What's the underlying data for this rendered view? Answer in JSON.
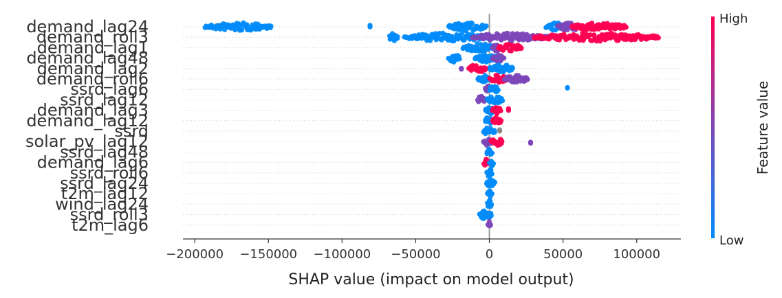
{
  "chart_data": {
    "type": "scatter",
    "subtype": "shap-beeswarm",
    "title": "",
    "xlabel": "SHAP value (impact on model output)",
    "ylabel": "",
    "xlim": [
      -208000,
      130000
    ],
    "x_ticks": [
      -200000,
      -150000,
      -100000,
      -50000,
      0,
      50000,
      100000
    ],
    "x_tick_labels": [
      "−200000",
      "−150000",
      "−100000",
      "−50000",
      "0",
      "50000",
      "100000"
    ],
    "grid": "dotted horizontal row lines",
    "colorbar": {
      "high_label": "High",
      "low_label": "Low",
      "title": "Feature value",
      "high_color": "#ff0052",
      "low_color": "#008bfb",
      "mid_color": "#7d47b8"
    },
    "features": [
      {
        "name": "demand_lag24",
        "clusters": [
          {
            "x0": -193000,
            "x1": -148000,
            "color": "low"
          },
          {
            "x0": -81000,
            "x1": -81000,
            "color": "low"
          },
          {
            "x0": -28000,
            "x1": -2000,
            "color": "low"
          },
          {
            "x0": 38000,
            "x1": 52000,
            "color": "low"
          },
          {
            "x0": 46000,
            "x1": 62000,
            "color": "mid"
          },
          {
            "x0": 56000,
            "x1": 93000,
            "color": "high"
          }
        ]
      },
      {
        "name": "demand_roll3",
        "clusters": [
          {
            "x0": -68000,
            "x1": -62000,
            "color": "low"
          },
          {
            "x0": -58000,
            "x1": 2000,
            "color": "low"
          },
          {
            "x0": -12000,
            "x1": 40000,
            "color": "mid"
          },
          {
            "x0": 30000,
            "x1": 115000,
            "color": "high"
          }
        ]
      },
      {
        "name": "demand_lag1",
        "clusters": [
          {
            "x0": -18000,
            "x1": 4000,
            "color": "low"
          },
          {
            "x0": 2000,
            "x1": 8000,
            "color": "mid"
          },
          {
            "x0": 6000,
            "x1": 22000,
            "color": "high"
          }
        ]
      },
      {
        "name": "demand_lag48",
        "clusters": [
          {
            "x0": -28000,
            "x1": -20000,
            "color": "low"
          },
          {
            "x0": -10000,
            "x1": 8000,
            "color": "low"
          },
          {
            "x0": 2000,
            "x1": 10000,
            "color": "mid"
          }
        ]
      },
      {
        "name": "demand_lag2",
        "clusters": [
          {
            "x0": -19000,
            "x1": -19000,
            "color": "mid"
          },
          {
            "x0": -14000,
            "x1": -2000,
            "color": "high"
          },
          {
            "x0": 0,
            "x1": 16000,
            "color": "low"
          }
        ]
      },
      {
        "name": "demand_roll6",
        "clusters": [
          {
            "x0": -8000,
            "x1": 0,
            "color": "low"
          },
          {
            "x0": 0,
            "x1": 12000,
            "color": "high"
          },
          {
            "x0": 10000,
            "x1": 26000,
            "color": "mid"
          }
        ]
      },
      {
        "name": "ssrd_lag6",
        "clusters": [
          {
            "x0": -3000,
            "x1": 2000,
            "color": "mid"
          },
          {
            "x0": 0,
            "x1": 6000,
            "color": "low"
          },
          {
            "x0": 53000,
            "x1": 53000,
            "color": "low"
          }
        ]
      },
      {
        "name": "ssrd_lag12",
        "clusters": [
          {
            "x0": -8000,
            "x1": -3000,
            "color": "mid"
          },
          {
            "x0": -2000,
            "x1": 9000,
            "color": "low"
          }
        ]
      },
      {
        "name": "demand_lag3",
        "clusters": [
          {
            "x0": -3000,
            "x1": 3000,
            "color": "low"
          },
          {
            "x0": 2000,
            "x1": 8000,
            "color": "high"
          },
          {
            "x0": 13000,
            "x1": 13000,
            "color": "high"
          }
        ]
      },
      {
        "name": "demand_lag12",
        "clusters": [
          {
            "x0": -3000,
            "x1": 3000,
            "color": "low"
          },
          {
            "x0": 2000,
            "x1": 8000,
            "color": "high"
          }
        ]
      },
      {
        "name": "ssrd",
        "clusters": [
          {
            "x0": -4000,
            "x1": 4000,
            "color": "low"
          },
          {
            "x0": 7000,
            "x1": 7000,
            "color": "gray"
          }
        ]
      },
      {
        "name": "solar_pv_lag12",
        "clusters": [
          {
            "x0": -4000,
            "x1": 2000,
            "color": "mid"
          },
          {
            "x0": 1000,
            "x1": 9000,
            "color": "high"
          },
          {
            "x0": 28000,
            "x1": 28000,
            "color": "mid"
          }
        ]
      },
      {
        "name": "ssrd_lag48",
        "clusters": [
          {
            "x0": -2000,
            "x1": 2000,
            "color": "low"
          }
        ]
      },
      {
        "name": "demand_lag6",
        "clusters": [
          {
            "x0": -4000,
            "x1": 1000,
            "color": "high"
          },
          {
            "x0": 0,
            "x1": 3000,
            "color": "low"
          }
        ]
      },
      {
        "name": "ssrd_roll6",
        "clusters": [
          {
            "x0": -2000,
            "x1": 2000,
            "color": "low"
          }
        ]
      },
      {
        "name": "ssrd_lag24",
        "clusters": [
          {
            "x0": -2000,
            "x1": 4000,
            "color": "low"
          }
        ]
      },
      {
        "name": "t2m_lag12",
        "clusters": [
          {
            "x0": -1500,
            "x1": 2000,
            "color": "low"
          }
        ]
      },
      {
        "name": "wind_lag24",
        "clusters": [
          {
            "x0": -1500,
            "x1": 1500,
            "color": "low"
          }
        ]
      },
      {
        "name": "ssrd_roll3",
        "clusters": [
          {
            "x0": -7000,
            "x1": -1000,
            "color": "low"
          },
          {
            "x0": -1000,
            "x1": 1500,
            "color": "low"
          }
        ]
      },
      {
        "name": "t2m_lag6",
        "clusters": [
          {
            "x0": -1000,
            "x1": 1000,
            "color": "mid"
          }
        ]
      }
    ]
  }
}
